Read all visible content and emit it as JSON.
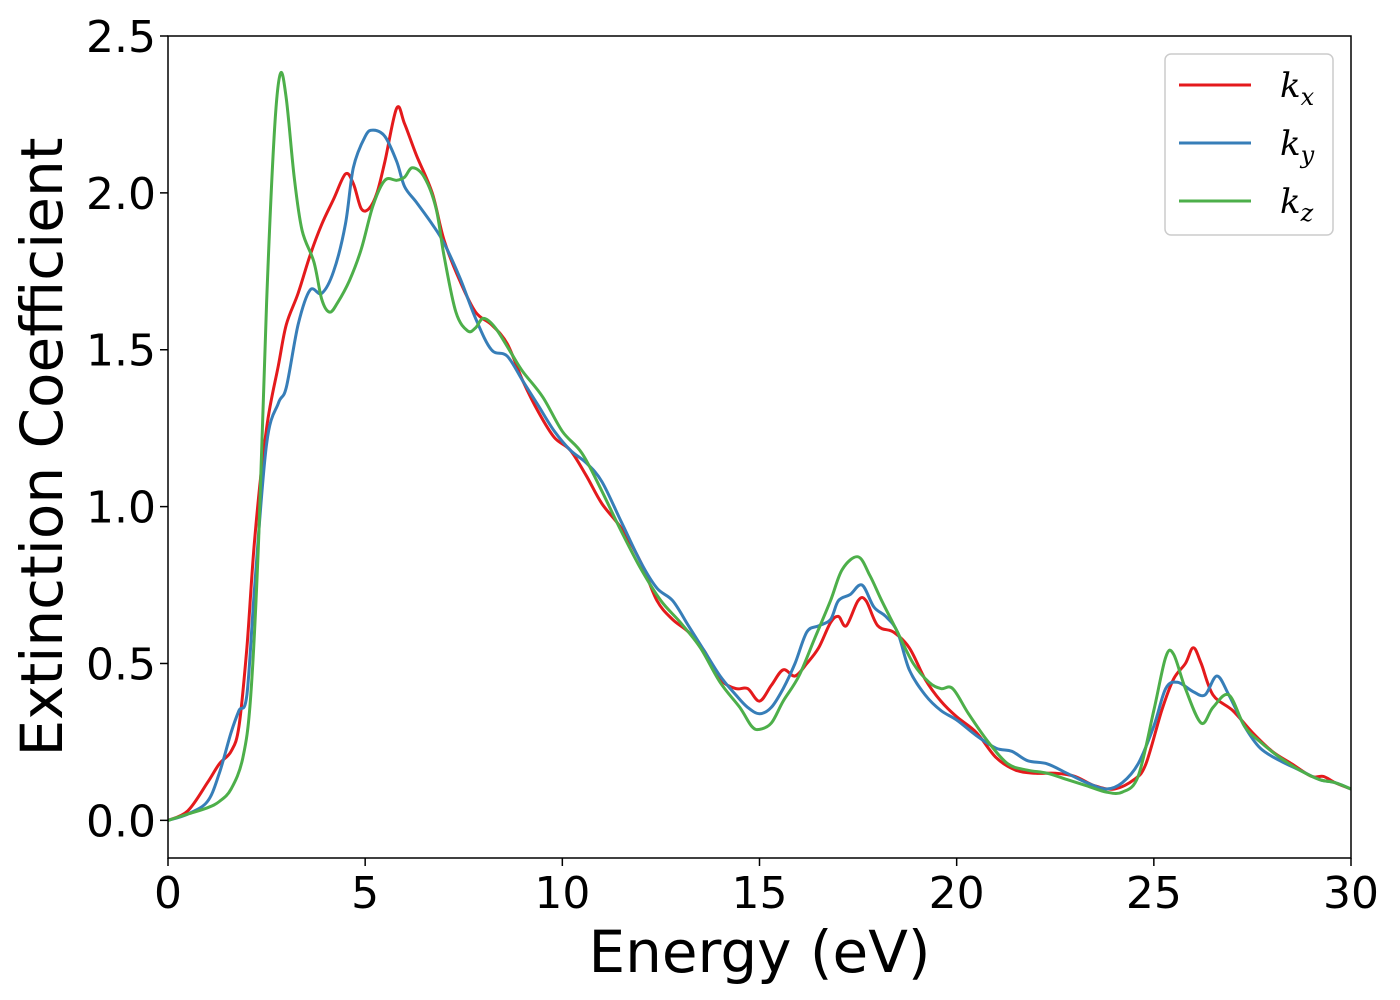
{
  "chart_data": {
    "type": "line",
    "title": "",
    "xlabel": "Energy (eV)",
    "ylabel": "Extinction Coefficient",
    "xlim": [
      0,
      30
    ],
    "ylim": [
      -0.12,
      2.5
    ],
    "xticks": [
      0,
      5,
      10,
      15,
      20,
      25,
      30
    ],
    "yticks": [
      0.0,
      0.5,
      1.0,
      1.5,
      2.0,
      2.5
    ],
    "xtick_labels": [
      "0",
      "5",
      "10",
      "15",
      "20",
      "25",
      "30"
    ],
    "ytick_labels": [
      "0.0",
      "0.5",
      "1.0",
      "1.5",
      "2.0",
      "2.5"
    ],
    "grid": false,
    "legend_position": "top-right",
    "series": [
      {
        "name": "k",
        "subscript": "x",
        "color": "#e41a1c",
        "points": [
          [
            0,
            0.0
          ],
          [
            0.5,
            0.03
          ],
          [
            1.0,
            0.12
          ],
          [
            1.3,
            0.18
          ],
          [
            1.6,
            0.22
          ],
          [
            1.8,
            0.3
          ],
          [
            2.0,
            0.55
          ],
          [
            2.2,
            0.9
          ],
          [
            2.5,
            1.25
          ],
          [
            2.8,
            1.45
          ],
          [
            3.0,
            1.58
          ],
          [
            3.3,
            1.68
          ],
          [
            3.6,
            1.8
          ],
          [
            3.9,
            1.9
          ],
          [
            4.2,
            1.98
          ],
          [
            4.5,
            2.06
          ],
          [
            4.7,
            2.03
          ],
          [
            4.9,
            1.95
          ],
          [
            5.1,
            1.95
          ],
          [
            5.3,
            2.0
          ],
          [
            5.5,
            2.1
          ],
          [
            5.8,
            2.27
          ],
          [
            6.0,
            2.22
          ],
          [
            6.3,
            2.12
          ],
          [
            6.7,
            2.0
          ],
          [
            7.0,
            1.85
          ],
          [
            7.4,
            1.72
          ],
          [
            7.8,
            1.62
          ],
          [
            8.2,
            1.58
          ],
          [
            8.6,
            1.52
          ],
          [
            9.0,
            1.4
          ],
          [
            9.4,
            1.3
          ],
          [
            9.8,
            1.22
          ],
          [
            10.2,
            1.18
          ],
          [
            10.6,
            1.1
          ],
          [
            11.0,
            1.01
          ],
          [
            11.5,
            0.93
          ],
          [
            12.0,
            0.82
          ],
          [
            12.4,
            0.7
          ],
          [
            12.8,
            0.64
          ],
          [
            13.2,
            0.6
          ],
          [
            13.6,
            0.54
          ],
          [
            14.0,
            0.45
          ],
          [
            14.4,
            0.42
          ],
          [
            14.7,
            0.42
          ],
          [
            15.0,
            0.38
          ],
          [
            15.3,
            0.43
          ],
          [
            15.6,
            0.48
          ],
          [
            15.9,
            0.46
          ],
          [
            16.2,
            0.5
          ],
          [
            16.5,
            0.55
          ],
          [
            16.8,
            0.63
          ],
          [
            17.0,
            0.65
          ],
          [
            17.2,
            0.62
          ],
          [
            17.5,
            0.7
          ],
          [
            17.7,
            0.7
          ],
          [
            18.0,
            0.62
          ],
          [
            18.4,
            0.6
          ],
          [
            18.8,
            0.55
          ],
          [
            19.2,
            0.45
          ],
          [
            19.6,
            0.38
          ],
          [
            20.0,
            0.33
          ],
          [
            20.5,
            0.28
          ],
          [
            21.0,
            0.2
          ],
          [
            21.5,
            0.16
          ],
          [
            22.0,
            0.15
          ],
          [
            22.5,
            0.15
          ],
          [
            23.0,
            0.14
          ],
          [
            23.5,
            0.11
          ],
          [
            24.0,
            0.1
          ],
          [
            24.5,
            0.13
          ],
          [
            24.8,
            0.18
          ],
          [
            25.2,
            0.35
          ],
          [
            25.5,
            0.45
          ],
          [
            25.8,
            0.5
          ],
          [
            26.0,
            0.55
          ],
          [
            26.2,
            0.5
          ],
          [
            26.5,
            0.4
          ],
          [
            27.0,
            0.35
          ],
          [
            27.5,
            0.28
          ],
          [
            28.0,
            0.22
          ],
          [
            28.5,
            0.18
          ],
          [
            29.0,
            0.14
          ],
          [
            29.3,
            0.14
          ],
          [
            29.6,
            0.12
          ],
          [
            30.0,
            0.1
          ]
        ]
      },
      {
        "name": "k",
        "subscript": "y",
        "color": "#377eb8",
        "points": [
          [
            0,
            0.0
          ],
          [
            0.5,
            0.02
          ],
          [
            1.0,
            0.06
          ],
          [
            1.3,
            0.15
          ],
          [
            1.6,
            0.28
          ],
          [
            1.8,
            0.35
          ],
          [
            2.0,
            0.4
          ],
          [
            2.2,
            0.75
          ],
          [
            2.5,
            1.2
          ],
          [
            2.8,
            1.33
          ],
          [
            3.0,
            1.38
          ],
          [
            3.3,
            1.58
          ],
          [
            3.6,
            1.69
          ],
          [
            3.9,
            1.68
          ],
          [
            4.2,
            1.75
          ],
          [
            4.5,
            1.9
          ],
          [
            4.7,
            2.08
          ],
          [
            5.0,
            2.18
          ],
          [
            5.2,
            2.2
          ],
          [
            5.5,
            2.18
          ],
          [
            5.8,
            2.1
          ],
          [
            6.0,
            2.02
          ],
          [
            6.3,
            1.97
          ],
          [
            6.7,
            1.9
          ],
          [
            7.0,
            1.84
          ],
          [
            7.4,
            1.73
          ],
          [
            7.8,
            1.6
          ],
          [
            8.2,
            1.5
          ],
          [
            8.6,
            1.48
          ],
          [
            9.0,
            1.4
          ],
          [
            9.4,
            1.32
          ],
          [
            9.8,
            1.24
          ],
          [
            10.2,
            1.18
          ],
          [
            10.6,
            1.14
          ],
          [
            11.0,
            1.08
          ],
          [
            11.5,
            0.95
          ],
          [
            12.0,
            0.82
          ],
          [
            12.4,
            0.74
          ],
          [
            12.8,
            0.7
          ],
          [
            13.2,
            0.62
          ],
          [
            13.6,
            0.54
          ],
          [
            14.0,
            0.46
          ],
          [
            14.4,
            0.4
          ],
          [
            14.7,
            0.36
          ],
          [
            15.0,
            0.34
          ],
          [
            15.3,
            0.36
          ],
          [
            15.6,
            0.42
          ],
          [
            15.9,
            0.5
          ],
          [
            16.2,
            0.6
          ],
          [
            16.5,
            0.62
          ],
          [
            16.8,
            0.64
          ],
          [
            17.0,
            0.7
          ],
          [
            17.3,
            0.72
          ],
          [
            17.6,
            0.75
          ],
          [
            17.9,
            0.68
          ],
          [
            18.2,
            0.65
          ],
          [
            18.5,
            0.6
          ],
          [
            18.8,
            0.48
          ],
          [
            19.2,
            0.4
          ],
          [
            19.6,
            0.35
          ],
          [
            20.0,
            0.32
          ],
          [
            20.5,
            0.27
          ],
          [
            21.0,
            0.23
          ],
          [
            21.4,
            0.22
          ],
          [
            21.8,
            0.19
          ],
          [
            22.3,
            0.18
          ],
          [
            22.8,
            0.15
          ],
          [
            23.3,
            0.12
          ],
          [
            23.8,
            0.1
          ],
          [
            24.2,
            0.12
          ],
          [
            24.6,
            0.18
          ],
          [
            25.0,
            0.3
          ],
          [
            25.3,
            0.42
          ],
          [
            25.6,
            0.44
          ],
          [
            26.0,
            0.41
          ],
          [
            26.3,
            0.4
          ],
          [
            26.6,
            0.46
          ],
          [
            26.9,
            0.4
          ],
          [
            27.3,
            0.3
          ],
          [
            27.7,
            0.23
          ],
          [
            28.2,
            0.19
          ],
          [
            28.7,
            0.16
          ],
          [
            29.2,
            0.13
          ],
          [
            29.6,
            0.12
          ],
          [
            30.0,
            0.1
          ]
        ]
      },
      {
        "name": "k",
        "subscript": "z",
        "color": "#4daf4a",
        "points": [
          [
            0,
            0.0
          ],
          [
            0.5,
            0.02
          ],
          [
            1.0,
            0.04
          ],
          [
            1.3,
            0.06
          ],
          [
            1.6,
            0.1
          ],
          [
            1.9,
            0.2
          ],
          [
            2.1,
            0.4
          ],
          [
            2.3,
            0.9
          ],
          [
            2.5,
            1.65
          ],
          [
            2.7,
            2.2
          ],
          [
            2.85,
            2.38
          ],
          [
            3.0,
            2.3
          ],
          [
            3.2,
            2.05
          ],
          [
            3.4,
            1.88
          ],
          [
            3.7,
            1.78
          ],
          [
            3.9,
            1.66
          ],
          [
            4.1,
            1.62
          ],
          [
            4.3,
            1.65
          ],
          [
            4.6,
            1.72
          ],
          [
            4.9,
            1.82
          ],
          [
            5.2,
            1.96
          ],
          [
            5.5,
            2.04
          ],
          [
            5.8,
            2.04
          ],
          [
            6.0,
            2.05
          ],
          [
            6.2,
            2.08
          ],
          [
            6.5,
            2.05
          ],
          [
            6.8,
            1.95
          ],
          [
            7.0,
            1.8
          ],
          [
            7.3,
            1.62
          ],
          [
            7.6,
            1.56
          ],
          [
            7.8,
            1.57
          ],
          [
            8.0,
            1.6
          ],
          [
            8.3,
            1.57
          ],
          [
            8.7,
            1.49
          ],
          [
            9.0,
            1.43
          ],
          [
            9.5,
            1.35
          ],
          [
            10.0,
            1.24
          ],
          [
            10.5,
            1.17
          ],
          [
            11.0,
            1.05
          ],
          [
            11.5,
            0.92
          ],
          [
            12.0,
            0.8
          ],
          [
            12.5,
            0.7
          ],
          [
            13.0,
            0.63
          ],
          [
            13.5,
            0.55
          ],
          [
            14.0,
            0.44
          ],
          [
            14.5,
            0.36
          ],
          [
            14.8,
            0.3
          ],
          [
            15.0,
            0.29
          ],
          [
            15.3,
            0.31
          ],
          [
            15.6,
            0.38
          ],
          [
            16.0,
            0.46
          ],
          [
            16.4,
            0.58
          ],
          [
            16.8,
            0.7
          ],
          [
            17.1,
            0.8
          ],
          [
            17.5,
            0.84
          ],
          [
            17.8,
            0.78
          ],
          [
            18.1,
            0.7
          ],
          [
            18.5,
            0.6
          ],
          [
            18.9,
            0.5
          ],
          [
            19.3,
            0.44
          ],
          [
            19.6,
            0.42
          ],
          [
            19.9,
            0.42
          ],
          [
            20.3,
            0.34
          ],
          [
            20.8,
            0.25
          ],
          [
            21.3,
            0.18
          ],
          [
            21.8,
            0.16
          ],
          [
            22.3,
            0.15
          ],
          [
            22.8,
            0.13
          ],
          [
            23.3,
            0.11
          ],
          [
            23.8,
            0.09
          ],
          [
            24.2,
            0.09
          ],
          [
            24.6,
            0.14
          ],
          [
            25.0,
            0.35
          ],
          [
            25.3,
            0.52
          ],
          [
            25.5,
            0.53
          ],
          [
            25.8,
            0.42
          ],
          [
            26.2,
            0.31
          ],
          [
            26.5,
            0.36
          ],
          [
            26.9,
            0.4
          ],
          [
            27.3,
            0.3
          ],
          [
            27.7,
            0.25
          ],
          [
            28.2,
            0.2
          ],
          [
            28.7,
            0.16
          ],
          [
            29.2,
            0.13
          ],
          [
            29.6,
            0.12
          ],
          [
            30.0,
            0.1
          ]
        ]
      }
    ]
  }
}
